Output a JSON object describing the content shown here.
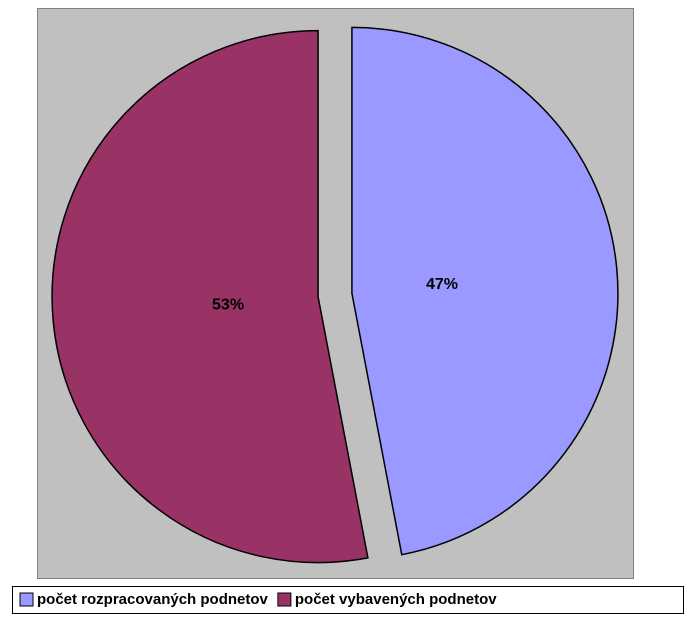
{
  "chart_data": {
    "type": "pie",
    "categories": [
      "počet rozpracovaných podnetov",
      "počet vybavených podnetov"
    ],
    "values": [
      47,
      53
    ],
    "value_labels": [
      "47%",
      "53%"
    ],
    "colors": [
      "#9999ff",
      "#993366"
    ],
    "legend": "bottom"
  }
}
